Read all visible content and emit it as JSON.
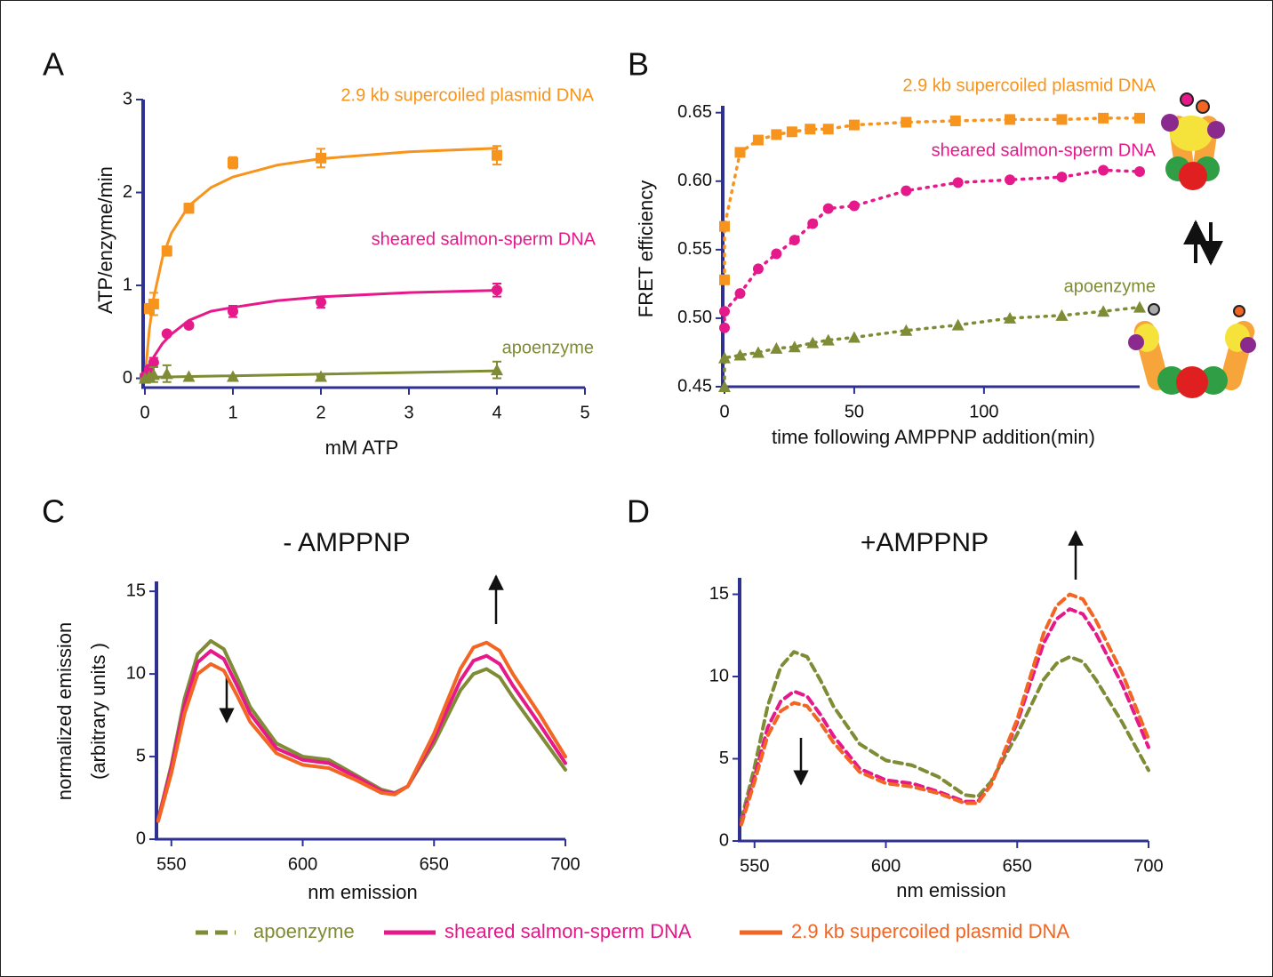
{
  "chart_data": [
    {
      "type": "scatter",
      "panel": "A",
      "x_label": "mM ATP",
      "y_label": "ATP/enzyme/min",
      "xlim": [
        0,
        5
      ],
      "ylim": [
        -0.1,
        3
      ],
      "xticks": [
        0,
        1,
        2,
        3,
        4,
        5
      ],
      "yticks": [
        0,
        1,
        2,
        3
      ],
      "series": [
        {
          "name": "2.9 kb supercoiled plasmid DNA",
          "color": "#f7941d",
          "marker": "square",
          "x": [
            0,
            0.05,
            0.1,
            0.25,
            0.5,
            1,
            2,
            4
          ],
          "values": [
            0,
            0.75,
            0.8,
            1.37,
            1.83,
            2.32,
            2.37,
            2.4
          ],
          "errors": [
            0,
            0.05,
            0.12,
            0.05,
            0.05,
            0.06,
            0.1,
            0.1
          ],
          "fit_x": [
            0,
            0.05,
            0.1,
            0.2,
            0.3,
            0.5,
            0.75,
            1,
            1.5,
            2,
            3,
            4
          ],
          "fit_values": [
            0,
            0.52,
            0.867,
            1.3,
            1.56,
            1.857,
            2.053,
            2.167,
            2.294,
            2.364,
            2.438,
            2.476
          ]
        },
        {
          "name": "sheared salmon-sperm DNA",
          "color": "#e6198b",
          "marker": "circle",
          "x": [
            0,
            0.05,
            0.1,
            0.25,
            0.5,
            1,
            2,
            4
          ],
          "values": [
            0.02,
            0.1,
            0.17,
            0.48,
            0.57,
            0.72,
            0.82,
            0.95
          ],
          "errors": [
            0,
            0,
            0.05,
            0,
            0.03,
            0.06,
            0.06,
            0.07
          ],
          "fit_x": [
            0,
            0.05,
            0.1,
            0.2,
            0.3,
            0.5,
            0.75,
            1,
            1.5,
            2,
            3,
            4
          ],
          "fit_values": [
            0,
            0.129,
            0.229,
            0.375,
            0.475,
            0.623,
            0.722,
            0.763,
            0.835,
            0.877,
            0.922,
            0.947
          ]
        },
        {
          "name": "apoenzyme",
          "color": "#808b35",
          "marker": "triangle",
          "x": [
            0,
            0.05,
            0.1,
            0.25,
            0.5,
            1,
            2,
            4
          ],
          "values": [
            0,
            0.02,
            0.04,
            0.05,
            0.02,
            0.02,
            0.02,
            0.09
          ],
          "errors": [
            0,
            0,
            0.08,
            0.09,
            0,
            0,
            0,
            0.09
          ],
          "fit_x": [
            0,
            4
          ],
          "fit_values": [
            0.01,
            0.08
          ]
        }
      ]
    },
    {
      "type": "scatter",
      "panel": "B",
      "x_label": "time following AMPPNP addition(min)",
      "y_label": "FRET efficiency",
      "line_style": "dotted",
      "xlim": [
        0,
        160
      ],
      "ylim": [
        0.45,
        0.655
      ],
      "xticks": [
        0,
        50,
        100
      ],
      "yticks": [
        0.45,
        {
          "value": 0.5,
          "label": "0.50"
        },
        0.55,
        {
          "value": 0.6,
          "label": "0.60"
        },
        0.65
      ],
      "series": [
        {
          "name": "2.9 kb supercoiled plasmid DNA",
          "color": "#f7941d",
          "marker": "square",
          "x": [
            0,
            0,
            6,
            13,
            20,
            26,
            33,
            40,
            50,
            70,
            89,
            110,
            130,
            146,
            160
          ],
          "values": [
            0.528,
            0.567,
            0.621,
            0.63,
            0.634,
            0.636,
            0.638,
            0.638,
            0.641,
            0.643,
            0.644,
            0.645,
            0.645,
            0.646,
            0.646
          ]
        },
        {
          "name": "sheared salmon-sperm DNA",
          "color": "#e6198b",
          "marker": "circle",
          "x": [
            0,
            0,
            6,
            13,
            20,
            27,
            34,
            40,
            50,
            70,
            90,
            110,
            130,
            146,
            160
          ],
          "values": [
            0.493,
            0.505,
            0.518,
            0.536,
            0.547,
            0.557,
            0.569,
            0.58,
            0.582,
            0.593,
            0.599,
            0.601,
            0.603,
            0.608,
            0.607
          ]
        },
        {
          "name": "apoenzyme",
          "color": "#808b35",
          "marker": "triangle",
          "x": [
            0,
            0,
            6,
            13,
            20,
            27,
            34,
            40,
            50,
            70,
            90,
            110,
            130,
            146,
            160
          ],
          "values": [
            0.45,
            0.471,
            0.473,
            0.475,
            0.478,
            0.479,
            0.482,
            0.484,
            0.486,
            0.491,
            0.495,
            0.5,
            0.502,
            0.505,
            0.508
          ]
        }
      ]
    },
    {
      "type": "line",
      "panel": "C",
      "title": "- AMPPNP",
      "x_label": "nm emission",
      "y_label": [
        "normalized  emission",
        "(arbitrary units )"
      ],
      "line_style": "solid",
      "legend": "bottom",
      "xlim": [
        545,
        700
      ],
      "ylim": [
        0,
        15.6
      ],
      "xticks": [
        550,
        600,
        650,
        700
      ],
      "yticks": [
        0,
        5,
        10,
        15
      ],
      "x": [
        545,
        550,
        555,
        560,
        565,
        570,
        575,
        580,
        590,
        600,
        610,
        620,
        630,
        635,
        640,
        650,
        660,
        665,
        670,
        675,
        680,
        690,
        700
      ],
      "series": [
        {
          "name": "apoenzyme",
          "color": "#808b35",
          "values": [
            1.2,
            4.5,
            8.5,
            11.2,
            12.0,
            11.5,
            9.8,
            8.0,
            5.8,
            5.0,
            4.8,
            3.9,
            3.0,
            2.8,
            3.2,
            5.8,
            9.0,
            10.0,
            10.3,
            9.8,
            8.6,
            6.4,
            4.2
          ]
        },
        {
          "name": "sheared salmon-sperm DNA",
          "color": "#e6198b",
          "values": [
            1.2,
            4.3,
            8.1,
            10.7,
            11.4,
            10.9,
            9.3,
            7.6,
            5.5,
            4.8,
            4.6,
            3.8,
            2.9,
            2.75,
            3.2,
            6.1,
            9.6,
            10.8,
            11.1,
            10.6,
            9.3,
            7.0,
            4.6
          ]
        },
        {
          "name": "2.9 kb supercoiled plasmid DNA",
          "color": "#f26522",
          "values": [
            1.1,
            4.0,
            7.6,
            10.0,
            10.6,
            10.2,
            8.7,
            7.1,
            5.2,
            4.5,
            4.3,
            3.6,
            2.8,
            2.7,
            3.2,
            6.4,
            10.3,
            11.6,
            11.9,
            11.4,
            10.0,
            7.6,
            5.0
          ]
        }
      ]
    },
    {
      "type": "line",
      "panel": "D",
      "title": "+AMPPNP",
      "x_label": "nm emission",
      "line_style": "dashed",
      "xlim": [
        545,
        700
      ],
      "ylim": [
        0,
        16
      ],
      "xticks": [
        550,
        600,
        650,
        700
      ],
      "yticks": [
        0,
        5,
        10,
        15
      ],
      "x": [
        545,
        550,
        555,
        560,
        565,
        570,
        575,
        580,
        590,
        600,
        610,
        620,
        630,
        635,
        640,
        650,
        660,
        665,
        670,
        675,
        680,
        690,
        700
      ],
      "series": [
        {
          "color": "#808b35",
          "values": [
            1.3,
            4.5,
            8.2,
            10.6,
            11.5,
            11.2,
            9.8,
            8.2,
            5.9,
            4.9,
            4.6,
            3.9,
            2.8,
            2.7,
            3.6,
            6.5,
            9.8,
            10.8,
            11.2,
            10.9,
            9.8,
            7.2,
            4.3
          ]
        },
        {
          "color": "#e6198b",
          "values": [
            1.1,
            3.9,
            6.9,
            8.5,
            9.1,
            8.8,
            7.7,
            6.4,
            4.4,
            3.7,
            3.5,
            3.0,
            2.4,
            2.4,
            3.4,
            7.2,
            12.0,
            13.5,
            14.1,
            13.8,
            12.6,
            9.5,
            5.7
          ]
        },
        {
          "color": "#f26522",
          "values": [
            1.0,
            3.6,
            6.4,
            7.9,
            8.4,
            8.2,
            7.2,
            6.0,
            4.2,
            3.5,
            3.3,
            2.9,
            2.3,
            2.3,
            3.4,
            7.4,
            12.6,
            14.3,
            15.0,
            14.7,
            13.4,
            10.2,
            6.2
          ]
        }
      ]
    }
  ]
}
